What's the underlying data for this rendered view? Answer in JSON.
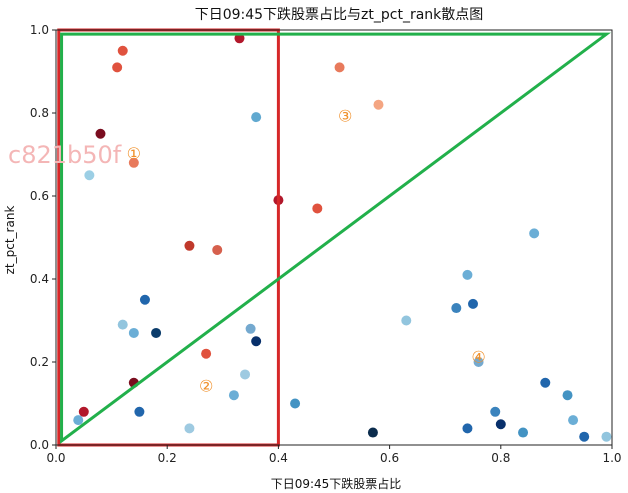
{
  "chart_data": {
    "type": "scatter",
    "title": "下日09:45下跌股票占比与zt_pct_rank散点图",
    "xlabel": "下日09:45下跌股票占比",
    "ylabel": "zt_pct_rank",
    "xlim": [
      0,
      1
    ],
    "ylim": [
      0,
      1
    ],
    "xticks": [
      "0.0",
      "0.2",
      "0.4",
      "0.6",
      "0.8",
      "1.0"
    ],
    "yticks": [
      "0.0",
      "0.2",
      "0.4",
      "0.6",
      "0.8",
      "1.0"
    ],
    "watermark": "c821b50f",
    "colors": {
      "red_box": "#d62728",
      "green_line": "#22b04b",
      "region_label": "#f0902a"
    },
    "red_box": {
      "x": [
        0.005,
        0.4
      ],
      "y": [
        0,
        1
      ]
    },
    "green_triangle": [
      [
        0.01,
        0.01
      ],
      [
        0.01,
        0.99
      ],
      [
        0.99,
        0.99
      ]
    ],
    "region_labels": [
      {
        "label": "①",
        "x": 0.14,
        "y": 0.7
      },
      {
        "label": "②",
        "x": 0.27,
        "y": 0.14
      },
      {
        "label": "③",
        "x": 0.52,
        "y": 0.79
      },
      {
        "label": "④",
        "x": 0.76,
        "y": 0.21
      }
    ],
    "points": [
      {
        "x": 0.12,
        "y": 0.95,
        "color": "#e0523e"
      },
      {
        "x": 0.11,
        "y": 0.91,
        "color": "#e0523e"
      },
      {
        "x": 0.33,
        "y": 0.98,
        "color": "#b2182b"
      },
      {
        "x": 0.08,
        "y": 0.75,
        "color": "#7a0d1f"
      },
      {
        "x": 0.14,
        "y": 0.68,
        "color": "#e87a5c"
      },
      {
        "x": 0.06,
        "y": 0.65,
        "color": "#9ccfe5"
      },
      {
        "x": 0.36,
        "y": 0.79,
        "color": "#61a9d0"
      },
      {
        "x": 0.4,
        "y": 0.59,
        "color": "#b2182b"
      },
      {
        "x": 0.47,
        "y": 0.57,
        "color": "#e0523e"
      },
      {
        "x": 0.51,
        "y": 0.91,
        "color": "#e87a5c"
      },
      {
        "x": 0.58,
        "y": 0.82,
        "color": "#f4a582"
      },
      {
        "x": 0.29,
        "y": 0.47,
        "color": "#d6604d"
      },
      {
        "x": 0.24,
        "y": 0.48,
        "color": "#c0392b"
      },
      {
        "x": 0.16,
        "y": 0.35,
        "color": "#2166ac"
      },
      {
        "x": 0.12,
        "y": 0.29,
        "color": "#92c5de"
      },
      {
        "x": 0.14,
        "y": 0.27,
        "color": "#6baed6"
      },
      {
        "x": 0.18,
        "y": 0.27,
        "color": "#0b3c6b"
      },
      {
        "x": 0.36,
        "y": 0.25,
        "color": "#08306b"
      },
      {
        "x": 0.35,
        "y": 0.28,
        "color": "#74a9cf"
      },
      {
        "x": 0.27,
        "y": 0.22,
        "color": "#e0523e"
      },
      {
        "x": 0.14,
        "y": 0.15,
        "color": "#7a0d1f"
      },
      {
        "x": 0.15,
        "y": 0.08,
        "color": "#2166ac"
      },
      {
        "x": 0.05,
        "y": 0.08,
        "color": "#b2182b"
      },
      {
        "x": 0.04,
        "y": 0.06,
        "color": "#6baed6"
      },
      {
        "x": 0.34,
        "y": 0.17,
        "color": "#9ecae1"
      },
      {
        "x": 0.74,
        "y": 0.41,
        "color": "#6baed6"
      },
      {
        "x": 0.75,
        "y": 0.34,
        "color": "#2166ac"
      },
      {
        "x": 0.72,
        "y": 0.33,
        "color": "#3b83bd"
      },
      {
        "x": 0.86,
        "y": 0.51,
        "color": "#6baed6"
      },
      {
        "x": 0.63,
        "y": 0.3,
        "color": "#92c5de"
      },
      {
        "x": 0.76,
        "y": 0.2,
        "color": "#74a9cf"
      },
      {
        "x": 0.88,
        "y": 0.15,
        "color": "#2166ac"
      },
      {
        "x": 0.92,
        "y": 0.12,
        "color": "#4393c3"
      },
      {
        "x": 0.57,
        "y": 0.03,
        "color": "#0b2c4d"
      },
      {
        "x": 0.74,
        "y": 0.04,
        "color": "#2166ac"
      },
      {
        "x": 0.79,
        "y": 0.08,
        "color": "#3b83bd"
      },
      {
        "x": 0.8,
        "y": 0.05,
        "color": "#08306b"
      },
      {
        "x": 0.84,
        "y": 0.03,
        "color": "#4393c3"
      },
      {
        "x": 0.93,
        "y": 0.06,
        "color": "#6baed6"
      },
      {
        "x": 0.95,
        "y": 0.02,
        "color": "#2166ac"
      },
      {
        "x": 0.99,
        "y": 0.02,
        "color": "#92c5de"
      },
      {
        "x": 0.43,
        "y": 0.1,
        "color": "#4393c3"
      },
      {
        "x": 0.32,
        "y": 0.12,
        "color": "#6baed6"
      },
      {
        "x": 0.24,
        "y": 0.04,
        "color": "#9ecae1"
      }
    ]
  }
}
